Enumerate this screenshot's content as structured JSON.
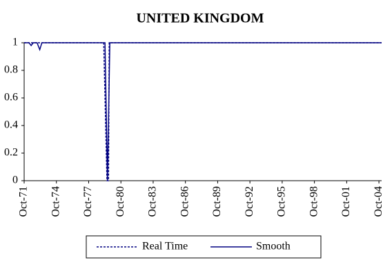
{
  "chart_data": {
    "type": "line",
    "title": "UNITED KINGDOM",
    "xlim": [
      1971.75,
      2005
    ],
    "ylim": [
      0,
      1
    ],
    "yticks": [
      0,
      0.2,
      0.4,
      0.6,
      0.8,
      1
    ],
    "xticks": [
      {
        "value": 1971.75,
        "label": "Oct-71"
      },
      {
        "value": 1974.75,
        "label": "Oct-74"
      },
      {
        "value": 1977.75,
        "label": "Oct-77"
      },
      {
        "value": 1980.75,
        "label": "Oct-80"
      },
      {
        "value": 1983.75,
        "label": "Oct-83"
      },
      {
        "value": 1986.75,
        "label": "Oct-86"
      },
      {
        "value": 1989.75,
        "label": "Oct-89"
      },
      {
        "value": 1992.75,
        "label": "Oct-92"
      },
      {
        "value": 1995.75,
        "label": "Oct-95"
      },
      {
        "value": 1998.75,
        "label": "Oct-98"
      },
      {
        "value": 2001.75,
        "label": "Oct-01"
      },
      {
        "value": 2004.75,
        "label": "Oct-04"
      }
    ],
    "series": [
      {
        "name": "Real Time",
        "color": "#000080",
        "dash": true,
        "x": [
          1971.75,
          1979.15,
          1979.45,
          1979.6,
          1979.66,
          2005
        ],
        "values": [
          1,
          1,
          0,
          0,
          1,
          1
        ]
      },
      {
        "name": "Smooth",
        "color": "#000080",
        "dash": false,
        "x": [
          1971.75,
          1972.2,
          1972.4,
          1972.6,
          1972.95,
          1973.2,
          1973.4,
          1979.27,
          1979.5,
          1979.72,
          2005
        ],
        "values": [
          1,
          1,
          0.98,
          1,
          1,
          0.95,
          1,
          1,
          0,
          1,
          1
        ]
      }
    ]
  }
}
